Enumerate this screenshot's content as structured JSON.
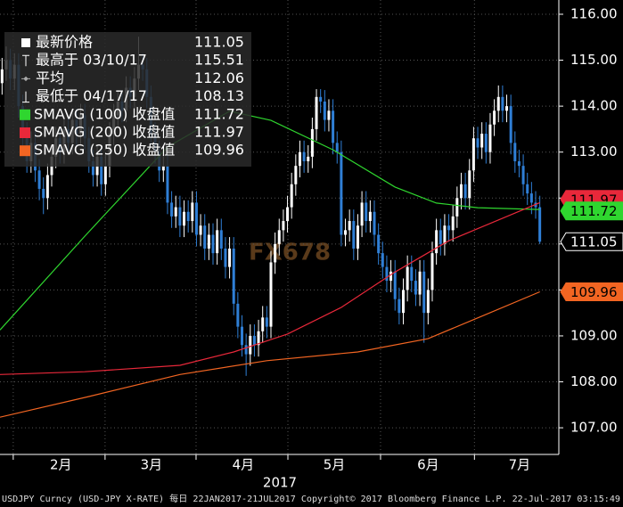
{
  "chart_data": {
    "type": "candlestick",
    "candles": [
      [
        114.5,
        115.05,
        114.25,
        114.8
      ],
      [
        114.8,
        115.3,
        114.55,
        115.0
      ],
      [
        115.0,
        115.25,
        114.35,
        114.6
      ],
      [
        114.6,
        115.15,
        114.35,
        114.9
      ],
      [
        114.9,
        115.15,
        113.75,
        114.0
      ],
      [
        114.0,
        114.25,
        113.15,
        113.4
      ],
      [
        113.4,
        113.65,
        112.55,
        112.8
      ],
      [
        112.8,
        113.45,
        112.55,
        113.2
      ],
      [
        113.2,
        113.45,
        112.35,
        112.6
      ],
      [
        112.6,
        112.85,
        111.95,
        112.2
      ],
      [
        112.2,
        112.45,
        111.65,
        112.0
      ],
      [
        112.0,
        112.75,
        111.75,
        112.5
      ],
      [
        112.5,
        113.15,
        112.25,
        112.9
      ],
      [
        112.9,
        113.55,
        112.65,
        113.3
      ],
      [
        113.3,
        113.55,
        112.75,
        113.0
      ],
      [
        113.0,
        113.75,
        112.75,
        113.5
      ],
      [
        113.5,
        113.75,
        112.95,
        113.2
      ],
      [
        113.2,
        113.95,
        112.95,
        113.7
      ],
      [
        113.7,
        113.95,
        113.15,
        113.4
      ],
      [
        113.4,
        114.05,
        113.15,
        113.8
      ],
      [
        113.8,
        114.05,
        113.05,
        113.3
      ],
      [
        113.3,
        113.55,
        112.55,
        112.8
      ],
      [
        112.8,
        113.05,
        112.25,
        112.5
      ],
      [
        112.5,
        113.15,
        112.25,
        112.9
      ],
      [
        112.9,
        113.15,
        112.05,
        112.3
      ],
      [
        112.3,
        112.95,
        112.05,
        112.7
      ],
      [
        112.7,
        113.65,
        112.45,
        113.4
      ],
      [
        113.4,
        114.05,
        113.15,
        113.8
      ],
      [
        113.8,
        114.35,
        113.55,
        114.1
      ],
      [
        114.1,
        114.35,
        113.65,
        113.9
      ],
      [
        113.9,
        114.65,
        113.65,
        114.4
      ],
      [
        114.4,
        114.65,
        113.95,
        114.2
      ],
      [
        114.2,
        114.85,
        113.95,
        114.6
      ],
      [
        114.6,
        115.51,
        114.35,
        114.9
      ],
      [
        114.9,
        115.15,
        114.55,
        114.8
      ],
      [
        114.8,
        115.05,
        113.95,
        114.2
      ],
      [
        114.2,
        114.45,
        113.15,
        113.4
      ],
      [
        113.4,
        113.65,
        112.75,
        113.0
      ],
      [
        113.0,
        113.25,
        112.35,
        112.6
      ],
      [
        112.6,
        112.95,
        112.35,
        112.7
      ],
      [
        112.7,
        112.95,
        111.65,
        111.9
      ],
      [
        111.9,
        112.15,
        111.35,
        111.6
      ],
      [
        111.6,
        112.05,
        111.35,
        111.8
      ],
      [
        111.8,
        112.05,
        111.15,
        111.4
      ],
      [
        111.4,
        111.95,
        111.15,
        111.7
      ],
      [
        111.7,
        111.95,
        111.25,
        111.5
      ],
      [
        111.5,
        112.15,
        111.25,
        111.9
      ],
      [
        111.9,
        112.15,
        110.95,
        111.2
      ],
      [
        111.2,
        111.65,
        110.95,
        111.4
      ],
      [
        111.4,
        111.65,
        110.65,
        110.9
      ],
      [
        110.9,
        111.45,
        110.65,
        111.2
      ],
      [
        111.2,
        111.45,
        110.55,
        110.8
      ],
      [
        110.8,
        111.55,
        110.55,
        111.3
      ],
      [
        111.3,
        111.55,
        110.65,
        110.9
      ],
      [
        110.9,
        111.15,
        110.25,
        110.5
      ],
      [
        110.5,
        111.15,
        110.25,
        110.9
      ],
      [
        110.9,
        111.15,
        109.45,
        109.7
      ],
      [
        109.7,
        109.95,
        108.95,
        109.2
      ],
      [
        109.2,
        109.45,
        108.55,
        108.8
      ],
      [
        108.8,
        109.05,
        108.13,
        108.6
      ],
      [
        108.6,
        109.25,
        108.35,
        109.0
      ],
      [
        109.0,
        109.25,
        108.55,
        108.8
      ],
      [
        108.8,
        109.35,
        108.55,
        109.1
      ],
      [
        109.1,
        109.65,
        108.85,
        109.4
      ],
      [
        109.4,
        109.65,
        108.95,
        109.2
      ],
      [
        109.2,
        110.85,
        108.95,
        110.6
      ],
      [
        110.6,
        111.25,
        110.35,
        111.0
      ],
      [
        111.0,
        111.55,
        110.75,
        111.3
      ],
      [
        111.3,
        111.75,
        111.05,
        111.5
      ],
      [
        111.5,
        112.05,
        111.25,
        111.8
      ],
      [
        111.8,
        112.55,
        111.55,
        112.3
      ],
      [
        112.3,
        112.95,
        112.05,
        112.7
      ],
      [
        112.7,
        113.25,
        112.45,
        113.0
      ],
      [
        113.0,
        113.25,
        112.55,
        112.8
      ],
      [
        112.8,
        113.15,
        112.55,
        112.9
      ],
      [
        112.9,
        113.75,
        112.65,
        113.5
      ],
      [
        113.5,
        114.37,
        113.25,
        114.2
      ],
      [
        114.2,
        114.37,
        113.85,
        114.1
      ],
      [
        114.1,
        114.35,
        113.45,
        113.7
      ],
      [
        113.7,
        114.15,
        113.45,
        113.9
      ],
      [
        113.9,
        114.15,
        112.95,
        113.2
      ],
      [
        113.2,
        113.45,
        112.75,
        113.0
      ],
      [
        113.0,
        113.25,
        110.95,
        111.2
      ],
      [
        111.2,
        111.55,
        110.95,
        111.3
      ],
      [
        111.3,
        111.75,
        111.05,
        111.5
      ],
      [
        111.5,
        111.75,
        110.65,
        110.9
      ],
      [
        110.9,
        111.65,
        110.65,
        111.4
      ],
      [
        111.4,
        112.15,
        111.15,
        111.9
      ],
      [
        111.9,
        112.15,
        111.25,
        111.5
      ],
      [
        111.5,
        111.95,
        111.25,
        111.7
      ],
      [
        111.7,
        111.95,
        110.95,
        111.2
      ],
      [
        111.2,
        111.45,
        110.55,
        110.8
      ],
      [
        110.8,
        111.05,
        110.25,
        110.5
      ],
      [
        110.5,
        110.75,
        109.95,
        110.2
      ],
      [
        110.2,
        110.65,
        109.95,
        110.4
      ],
      [
        110.4,
        110.65,
        109.55,
        109.8
      ],
      [
        109.8,
        110.05,
        109.25,
        109.5
      ],
      [
        109.5,
        110.25,
        109.25,
        110.0
      ],
      [
        110.0,
        110.75,
        109.75,
        110.5
      ],
      [
        110.5,
        110.75,
        109.95,
        110.2
      ],
      [
        110.2,
        110.45,
        109.65,
        109.9
      ],
      [
        109.9,
        110.65,
        109.65,
        110.4
      ],
      [
        110.4,
        110.65,
        108.85,
        109.5
      ],
      [
        109.5,
        110.25,
        109.25,
        110.0
      ],
      [
        110.0,
        111.05,
        109.75,
        110.8
      ],
      [
        110.8,
        111.55,
        110.55,
        111.3
      ],
      [
        111.3,
        111.55,
        110.75,
        111.0
      ],
      [
        111.0,
        111.65,
        110.75,
        111.4
      ],
      [
        111.4,
        111.65,
        111.05,
        111.3
      ],
      [
        111.3,
        111.85,
        111.05,
        111.6
      ],
      [
        111.6,
        112.25,
        111.35,
        112.0
      ],
      [
        112.0,
        112.55,
        111.75,
        112.3
      ],
      [
        112.3,
        112.55,
        111.75,
        112.0
      ],
      [
        112.0,
        112.85,
        111.75,
        112.6
      ],
      [
        112.6,
        113.55,
        112.35,
        113.3
      ],
      [
        113.3,
        113.55,
        112.85,
        113.1
      ],
      [
        113.1,
        113.65,
        112.85,
        113.4
      ],
      [
        113.4,
        113.65,
        112.75,
        113.0
      ],
      [
        113.0,
        113.85,
        112.75,
        113.6
      ],
      [
        113.6,
        114.15,
        113.35,
        113.9
      ],
      [
        113.9,
        114.45,
        113.65,
        114.2
      ],
      [
        114.2,
        114.45,
        113.65,
        113.9
      ],
      [
        113.9,
        114.25,
        113.65,
        114.0
      ],
      [
        114.0,
        114.25,
        112.95,
        113.2
      ],
      [
        113.2,
        113.45,
        112.55,
        112.8
      ],
      [
        112.8,
        113.05,
        112.45,
        112.7
      ],
      [
        112.7,
        112.95,
        112.05,
        112.3
      ],
      [
        112.3,
        112.55,
        111.85,
        112.1
      ],
      [
        112.1,
        112.35,
        111.65,
        111.9
      ],
      [
        111.9,
        112.15,
        111.55,
        111.8
      ],
      [
        111.8,
        112.05,
        111.0,
        111.05
      ]
    ],
    "up_color": "#ffffff",
    "down_color": "#2f7fd6",
    "xlim": [
      -0.5,
      134.6
    ],
    "xticks": [
      {
        "value": 14.2,
        "label": "2月"
      },
      {
        "value": 36.1,
        "label": "3月"
      },
      {
        "value": 58.3,
        "label": "4月"
      },
      {
        "value": 80.3,
        "label": "5月"
      },
      {
        "value": 103,
        "label": "6月"
      },
      {
        "value": 125.1,
        "label": "7月"
      }
    ],
    "x_separators": [
      2.7,
      24.9,
      46.9,
      69.1,
      91.5,
      114.2
    ],
    "xlabel": "2017",
    "ylim": [
      106.42,
      116.31
    ],
    "yticks": [
      {
        "value": 107,
        "label": "107.00"
      },
      {
        "value": 108,
        "label": "108.00"
      },
      {
        "value": 109,
        "label": "109.00"
      },
      {
        "value": 110,
        "label": "110.00"
      },
      {
        "value": 111,
        "label": "111.00"
      },
      {
        "value": 112,
        "label": "112.00"
      },
      {
        "value": 113,
        "label": "113.00"
      },
      {
        "value": 114,
        "label": "114.00"
      },
      {
        "value": 115,
        "label": "115.00"
      },
      {
        "value": 116,
        "label": "116.00"
      }
    ],
    "grid": true,
    "stats": [
      {
        "name": "最新价格",
        "value": 111.05
      },
      {
        "name": "最高于 03/10/17",
        "value": 115.51
      },
      {
        "name": "平均",
        "value": 112.06
      },
      {
        "name": "最低于 04/17/17",
        "value": 108.13
      }
    ],
    "series": [
      {
        "name": "SMAVG (100) 收盘值",
        "color": "#2fd62f",
        "tag_text": "#000000",
        "last": 111.72,
        "x": [
          -0.5,
          20,
          40,
          55,
          65,
          80,
          95,
          105,
          115,
          130
        ],
        "values": [
          109.13,
          111.17,
          113.11,
          113.89,
          113.69,
          113.05,
          112.24,
          111.89,
          111.79,
          111.75
        ]
      },
      {
        "name": "SMAVG (200) 收盘值",
        "color": "#e8283a",
        "tag_text": "#000000",
        "last": 111.97,
        "x": [
          -0.5,
          20,
          43,
          56,
          69,
          82,
          95,
          108,
          121,
          130
        ],
        "values": [
          108.16,
          108.22,
          108.36,
          108.65,
          109.04,
          109.62,
          110.39,
          111.07,
          111.56,
          111.9
        ]
      },
      {
        "name": "SMAVG (250) 收盘值",
        "color": "#f26522",
        "tag_text": "#000000",
        "last": 109.96,
        "x": [
          -0.5,
          21,
          43,
          64,
          86,
          103,
          116,
          130
        ],
        "values": [
          107.23,
          107.68,
          108.16,
          108.46,
          108.65,
          108.94,
          109.43,
          109.96
        ]
      }
    ]
  },
  "watermark": "FX678",
  "footer": "USDJPY Curncy (USD-JPY X-RATE)  每日 22JAN2017-21JUL2017 Copyright© 2017 Bloomberg Finance L.P. 22-Jul-2017 03:15:49"
}
